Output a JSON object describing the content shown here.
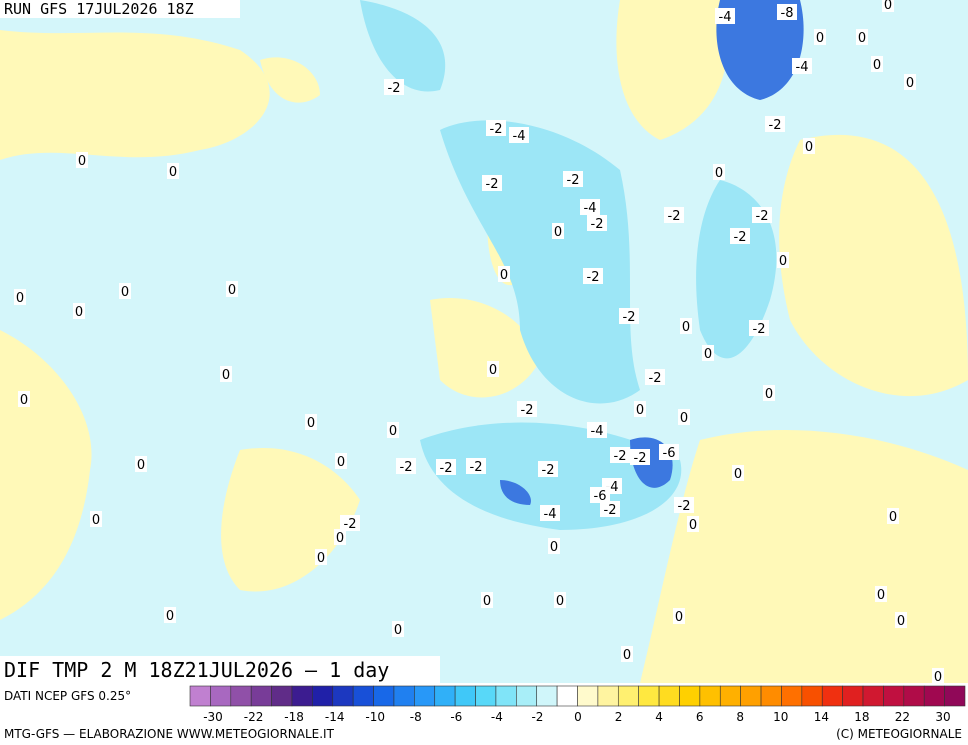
{
  "header": {
    "run": "RUN GFS 17JUL2026 18Z"
  },
  "caption": "DIF TMP 2 M 18Z21JUL2026 — 1 day",
  "source": "DATI NCEP GFS 0.25°",
  "footer": {
    "left": "MTG-GFS — ELABORAZIONE WWW.METEOGIORNALE.IT",
    "right": "(C) METEOGIORNALE"
  },
  "legend": {
    "colors": [
      "#c080d0",
      "#a868c0",
      "#9050a8",
      "#783c98",
      "#602c88",
      "#3c1c90",
      "#2020a8",
      "#1c38c0",
      "#1850d8",
      "#1868e8",
      "#2080f0",
      "#2898f8",
      "#30b0f8",
      "#40c8f8",
      "#58d8f8",
      "#80e4f8",
      "#a8eef8",
      "#d0f6fa",
      "#ffffff",
      "#fffacc",
      "#fff4a0",
      "#fff070",
      "#ffe840",
      "#ffdc20",
      "#ffd000",
      "#ffc000",
      "#ffb000",
      "#ffa000",
      "#ff8c00",
      "#ff7000",
      "#f85000",
      "#f03010",
      "#e02020",
      "#d01830",
      "#c01040",
      "#b00c48",
      "#a00850",
      "#900858"
    ],
    "labels": [
      "-30",
      "-22",
      "-18",
      "-14",
      "-10",
      "-8",
      "-6",
      "-4",
      "-2",
      "0",
      "2",
      "4",
      "6",
      "8",
      "10",
      "14",
      "18",
      "22",
      "30"
    ]
  },
  "map_labels": [
    "-4",
    "-8",
    "0",
    "0",
    "0",
    "-4",
    "0",
    "0",
    "-2",
    "-2",
    "-4",
    "-2",
    "0",
    "0",
    "0",
    "-2",
    "-2",
    "0",
    "-4",
    "-2",
    "-2",
    "-2",
    "0",
    "-2",
    "0",
    "0",
    "-2",
    "0",
    "0",
    "0",
    "0",
    "-2",
    "0",
    "-2",
    "0",
    "0",
    "0",
    "-2",
    "0",
    "0",
    "0",
    "-2",
    "0",
    "0",
    "-4",
    "0",
    "-2",
    "-2",
    "-6",
    "0",
    "0",
    "-2",
    "-2",
    "-2",
    "-2",
    "-4",
    "-6",
    "0",
    "-2",
    "-2",
    "-4",
    "0",
    "-2",
    "0",
    "0",
    "0",
    "0",
    "0",
    "0",
    "0",
    "0",
    "0",
    "0",
    "0",
    "0",
    "0",
    "0"
  ]
}
